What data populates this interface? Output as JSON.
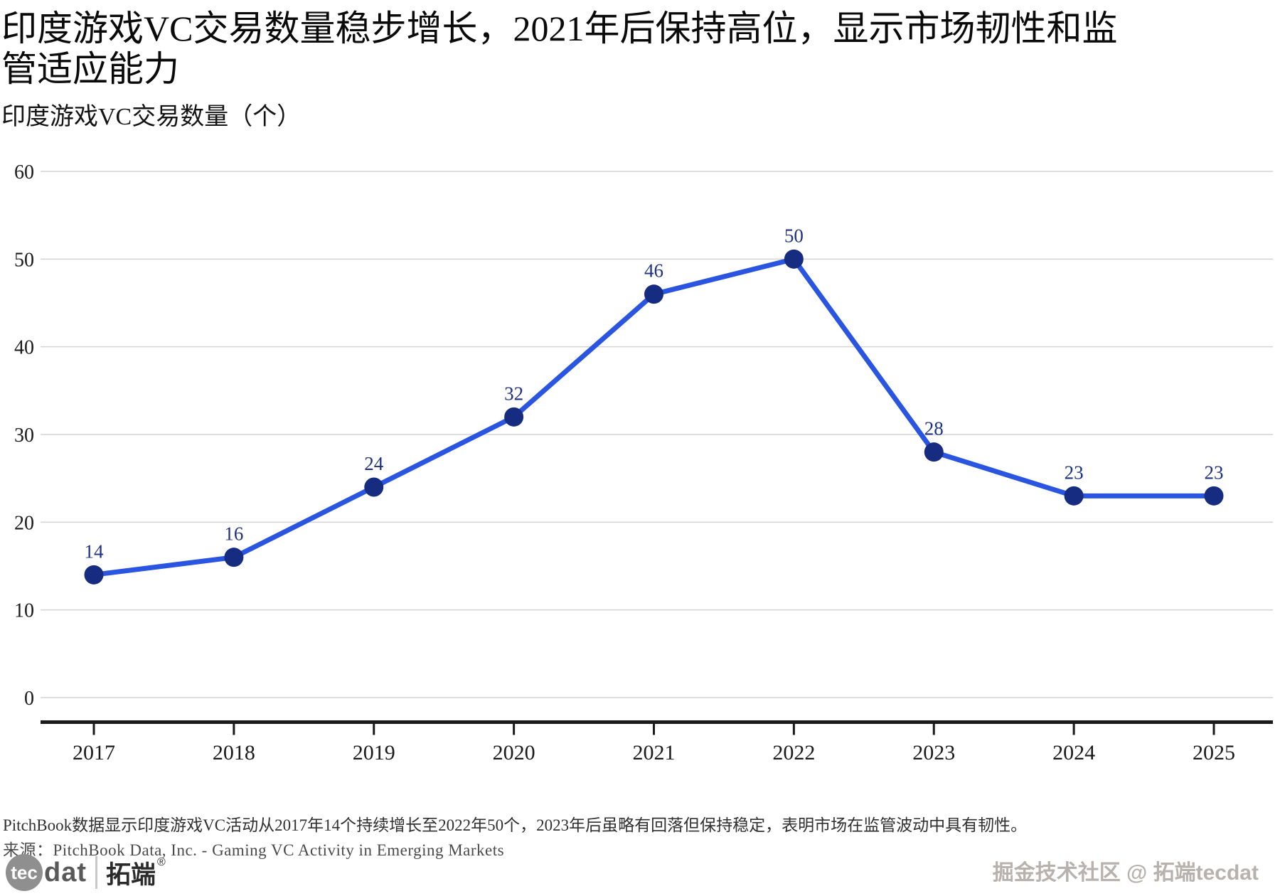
{
  "header": {
    "title": "印度游戏VC交易数量稳步增长，2021年后保持高位，显示市场韧性和监管适应能力",
    "subtitle": "印度游戏VC交易数量（个）"
  },
  "chart_data": {
    "type": "line",
    "title": "印度游戏VC交易数量（个）",
    "categories": [
      "2017",
      "2018",
      "2019",
      "2020",
      "2021",
      "2022",
      "2023",
      "2024",
      "2025"
    ],
    "values": [
      14,
      16,
      24,
      32,
      46,
      50,
      28,
      23,
      23
    ],
    "xlabel": "",
    "ylabel": "",
    "ylim": [
      0,
      60
    ],
    "yticks": [
      0,
      10,
      20,
      30,
      40,
      50,
      60
    ],
    "grid": "horizontal",
    "legend": "none",
    "colors": {
      "line": "#2a55e0",
      "marker": "#162c80",
      "data_label": "#1e3182",
      "gridline": "#d4d4d4",
      "axis": "#1a1a1a",
      "tick_label": "#1a1a1a"
    }
  },
  "footer": {
    "note": "PitchBook数据显示印度游戏VC活动从2017年14个持续增长至2022年50个，2023年后虽略有回落但保持稳定，表明市场在监管波动中具有韧性。",
    "source": "来源：PitchBook Data, Inc. - Gaming VC Activity in Emerging Markets",
    "logo": {
      "circle_text": "tec",
      "rest_text": "dat",
      "brand": "拓端",
      "registered": "®"
    },
    "watermark": "掘金技术社区 @ 拓端tecdat"
  }
}
